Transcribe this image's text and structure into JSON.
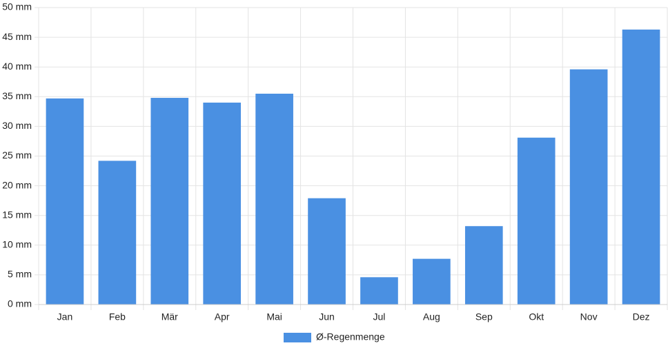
{
  "chart_data": {
    "type": "bar",
    "categories": [
      "Jan",
      "Feb",
      "Mär",
      "Apr",
      "Mai",
      "Jun",
      "Jul",
      "Aug",
      "Sep",
      "Okt",
      "Nov",
      "Dez"
    ],
    "series": [
      {
        "name": "Ø-Regenmenge",
        "color": "#4a90e2",
        "values": [
          34.7,
          24.2,
          34.8,
          34.0,
          35.5,
          17.9,
          4.6,
          7.7,
          13.2,
          28.1,
          39.6,
          46.3
        ]
      }
    ],
    "ylim": [
      0,
      50
    ],
    "yticks": [
      {
        "value": 0,
        "label": "0 mm"
      },
      {
        "value": 5,
        "label": "5 mm"
      },
      {
        "value": 10,
        "label": "10 mm"
      },
      {
        "value": 15,
        "label": "15 mm"
      },
      {
        "value": 20,
        "label": "20 mm"
      },
      {
        "value": 25,
        "label": "25 mm"
      },
      {
        "value": 30,
        "label": "30 mm"
      },
      {
        "value": 35,
        "label": "35 mm"
      },
      {
        "value": 40,
        "label": "40 mm"
      },
      {
        "value": 45,
        "label": "45 mm"
      },
      {
        "value": 50,
        "label": "50 mm"
      }
    ],
    "grid": true,
    "legend": "bottom"
  }
}
